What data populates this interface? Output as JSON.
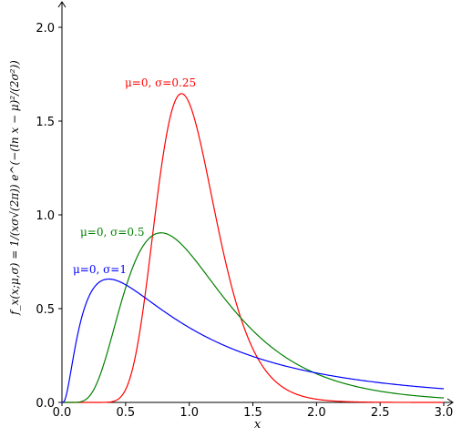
{
  "chart_data": {
    "type": "line",
    "title": "",
    "xlabel": "x",
    "ylabel": "f_x(x;μ,σ) = 1/(xσ√(2π)) e^(−(ln x − μ)²/(2σ²))",
    "xlim": [
      0.0,
      3.0
    ],
    "ylim": [
      0.0,
      2.0
    ],
    "grid": false,
    "x_ticks": [
      "0.0",
      "0.5",
      "1.0",
      "1.5",
      "2.0",
      "2.5",
      "3.0"
    ],
    "y_ticks": [
      "0.0",
      "0.5",
      "1.0",
      "1.5",
      "2.0"
    ],
    "series": [
      {
        "name": "μ=0, σ=0.25",
        "mu": 0,
        "sigma": 0.25,
        "color": "#ff0000",
        "x": [
          0.4,
          0.5,
          0.6,
          0.7,
          0.8,
          0.9,
          0.94,
          1.0,
          1.1,
          1.2,
          1.3,
          1.4,
          1.5,
          1.6,
          1.8,
          2.0,
          2.2
        ],
        "values": [
          0.0,
          0.03,
          0.2,
          0.6,
          1.13,
          1.56,
          1.64,
          1.6,
          1.3,
          0.9,
          0.55,
          0.3,
          0.17,
          0.09,
          0.03,
          0.01,
          0.0
        ]
      },
      {
        "name": "μ=0, σ=0.5",
        "mu": 0,
        "sigma": 0.5,
        "color": "#008000",
        "x": [
          0.1,
          0.2,
          0.3,
          0.4,
          0.5,
          0.6,
          0.7,
          0.78,
          0.9,
          1.0,
          1.2,
          1.4,
          1.6,
          2.0,
          2.5,
          3.0
        ],
        "values": [
          0.0,
          0.04,
          0.2,
          0.45,
          0.68,
          0.83,
          0.89,
          0.9,
          0.87,
          0.8,
          0.63,
          0.45,
          0.33,
          0.16,
          0.07,
          0.03
        ]
      },
      {
        "name": "μ=0, σ=1",
        "mu": 0,
        "sigma": 1,
        "color": "#0000ff",
        "x": [
          0.05,
          0.1,
          0.2,
          0.37,
          0.5,
          0.75,
          1.0,
          1.5,
          2.0,
          2.5,
          3.0
        ],
        "values": [
          0.06,
          0.28,
          0.55,
          0.66,
          0.63,
          0.53,
          0.4,
          0.24,
          0.16,
          0.11,
          0.07
        ]
      }
    ],
    "annotations": [
      {
        "text": "μ=0, σ=0.25",
        "series": 0
      },
      {
        "text": "μ=0, σ=0.5",
        "series": 1
      },
      {
        "text": "μ=0, σ=1",
        "series": 2
      }
    ]
  }
}
